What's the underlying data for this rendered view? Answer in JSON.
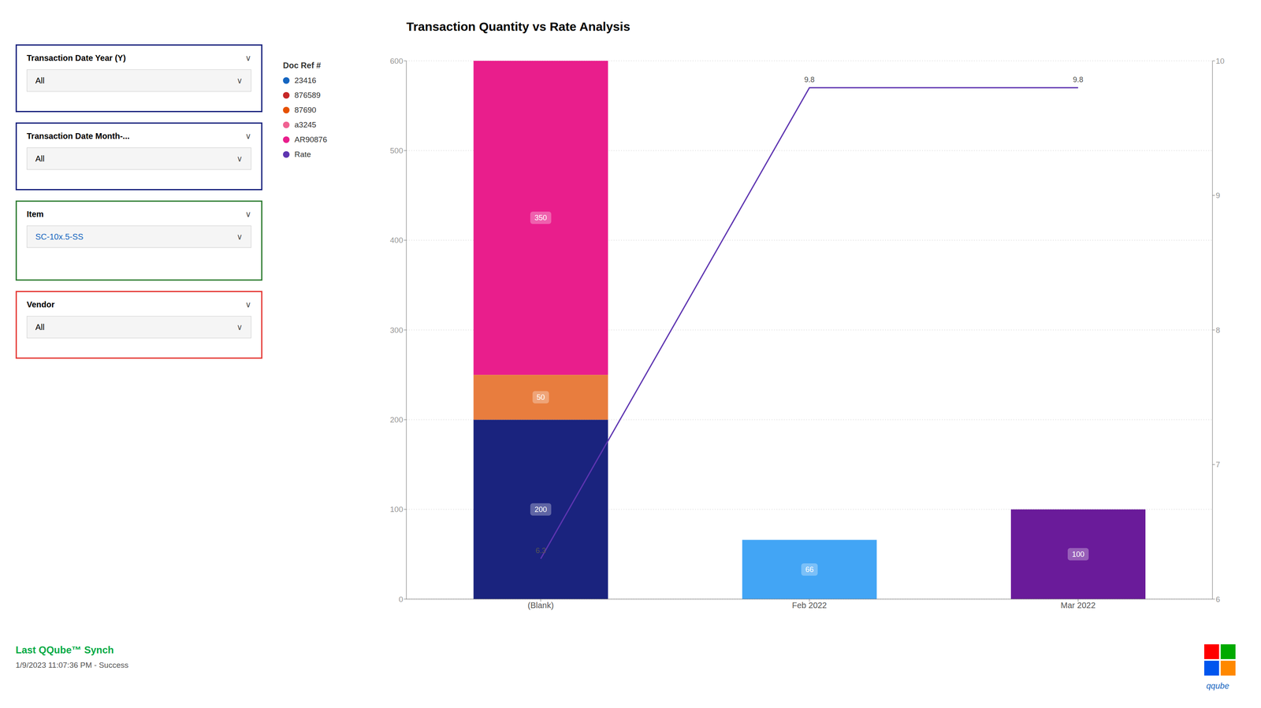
{
  "chart_data": {
    "type": "bar",
    "title": "Transaction Quantity vs Rate Analysis",
    "categories": [
      "(Blank)",
      "Feb 2022",
      "Mar 2022"
    ],
    "stacked": true,
    "data_labels": true,
    "grid": true,
    "series": [
      {
        "values": [
          200,
          null,
          null
        ],
        "color": "#1a237e"
      },
      {
        "values": [
          50,
          null,
          null
        ],
        "color": "#e87d3e"
      },
      {
        "values": [
          350,
          null,
          null
        ],
        "color": "#e91e8c"
      },
      {
        "values": [
          null,
          66,
          null
        ],
        "color": "#42a5f5"
      },
      {
        "values": [
          null,
          null,
          100
        ],
        "color": "#6a1b9a"
      },
      {
        "type": "line",
        "axis": "y2",
        "color": "#5e35b1",
        "values": [
          6.3,
          9.8,
          9.8
        ]
      }
    ],
    "ylim": [
      0,
      600
    ],
    "yticks": [
      0,
      100,
      200,
      300,
      400,
      500,
      600
    ],
    "y2lim": [
      6,
      10
    ],
    "y2ticks": [
      6,
      7,
      8,
      9,
      10
    ],
    "legend_title": "Doc Ref #",
    "legend_entries": [
      {
        "label": "23416",
        "color": "#1565c0"
      },
      {
        "label": "876589",
        "color": "#c62828"
      },
      {
        "label": "87690",
        "color": "#e65100"
      },
      {
        "label": "a3245",
        "color": "#f06292"
      },
      {
        "label": "AR90876",
        "color": "#e91e8c"
      },
      {
        "label": "Rate",
        "color": "#5e35b1"
      }
    ],
    "filter_boxes": [
      {
        "title": "Transaction Date Year (Y)",
        "value": "All",
        "border_color": "#1a237e",
        "title_color": "black",
        "value_color": "black"
      },
      {
        "title": "Transaction Date Month-...",
        "value": "All",
        "border_color": "#1a237e",
        "title_color": "black",
        "value_color": "black"
      },
      {
        "title": "Item",
        "value": "SC-10x.5-SS",
        "border_color": "#2e7d32",
        "title_color": "black",
        "value_color": "#1565c0"
      },
      {
        "title": "Vendor",
        "value": "All",
        "border_color": "#e53935",
        "title_color": "black",
        "value_color": "black"
      }
    ],
    "chevron": "∨",
    "footer": "Last QQube™ Synch",
    "footer_color": "#00aa44",
    "footer_subtext": "1/9/2023 11:07:36 PM - Success",
    "logo_text": "qqube",
    "logo_text_color": "#1565c0",
    "logo_colors": [
      "#ff0000",
      "#00aa00",
      "#0055ee",
      "#ff8800"
    ]
  }
}
